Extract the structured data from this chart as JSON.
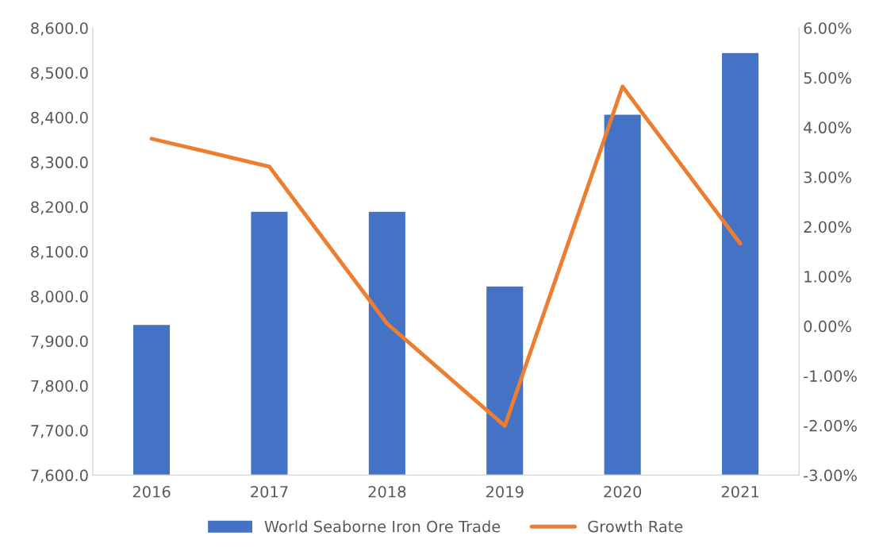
{
  "chart_data": {
    "type": "bar",
    "categories": [
      "2016",
      "2017",
      "2018",
      "2019",
      "2020",
      "2021"
    ],
    "series": [
      {
        "name": "World Seaborne Iron Ore Trade",
        "color": "#4472c4",
        "values": [
          7937,
          8190,
          8190,
          8023,
          8407,
          8545
        ]
      },
      {
        "name": "Growth Rate",
        "type": "line",
        "axis": "y2",
        "color": "#ed7d31",
        "values": [
          3.77,
          3.21,
          0.05,
          -2.01,
          4.82,
          1.66
        ]
      }
    ],
    "ylim": [
      7600,
      8600
    ],
    "yticks": [
      {
        "value": 7600,
        "label": "7,600.0"
      },
      {
        "value": 7700,
        "label": "7,700.0"
      },
      {
        "value": 7800,
        "label": "7,800.0"
      },
      {
        "value": 7900,
        "label": "7,900.0"
      },
      {
        "value": 8000,
        "label": "8,000.0"
      },
      {
        "value": 8100,
        "label": "8,100.0"
      },
      {
        "value": 8200,
        "label": "8,200.0"
      },
      {
        "value": 8300,
        "label": "8,300.0"
      },
      {
        "value": 8400,
        "label": "8,400.0"
      },
      {
        "value": 8500,
        "label": "8,500.0"
      },
      {
        "value": 8600,
        "label": "8,600.0"
      }
    ],
    "y2lim": [
      -3,
      6
    ],
    "y2ticks": [
      {
        "value": -3,
        "label": "-3.00%"
      },
      {
        "value": -2,
        "label": "-2.00%"
      },
      {
        "value": -1,
        "label": "-1.00%"
      },
      {
        "value": 0,
        "label": "0.00%"
      },
      {
        "value": 1,
        "label": "1.00%"
      },
      {
        "value": 2,
        "label": "2.00%"
      },
      {
        "value": 3,
        "label": "3.00%"
      },
      {
        "value": 4,
        "label": "4.00%"
      },
      {
        "value": 5,
        "label": "5.00%"
      },
      {
        "value": 6,
        "label": "6.00%"
      }
    ],
    "legend": "bottom",
    "marker": "none",
    "line_style": "solid"
  }
}
